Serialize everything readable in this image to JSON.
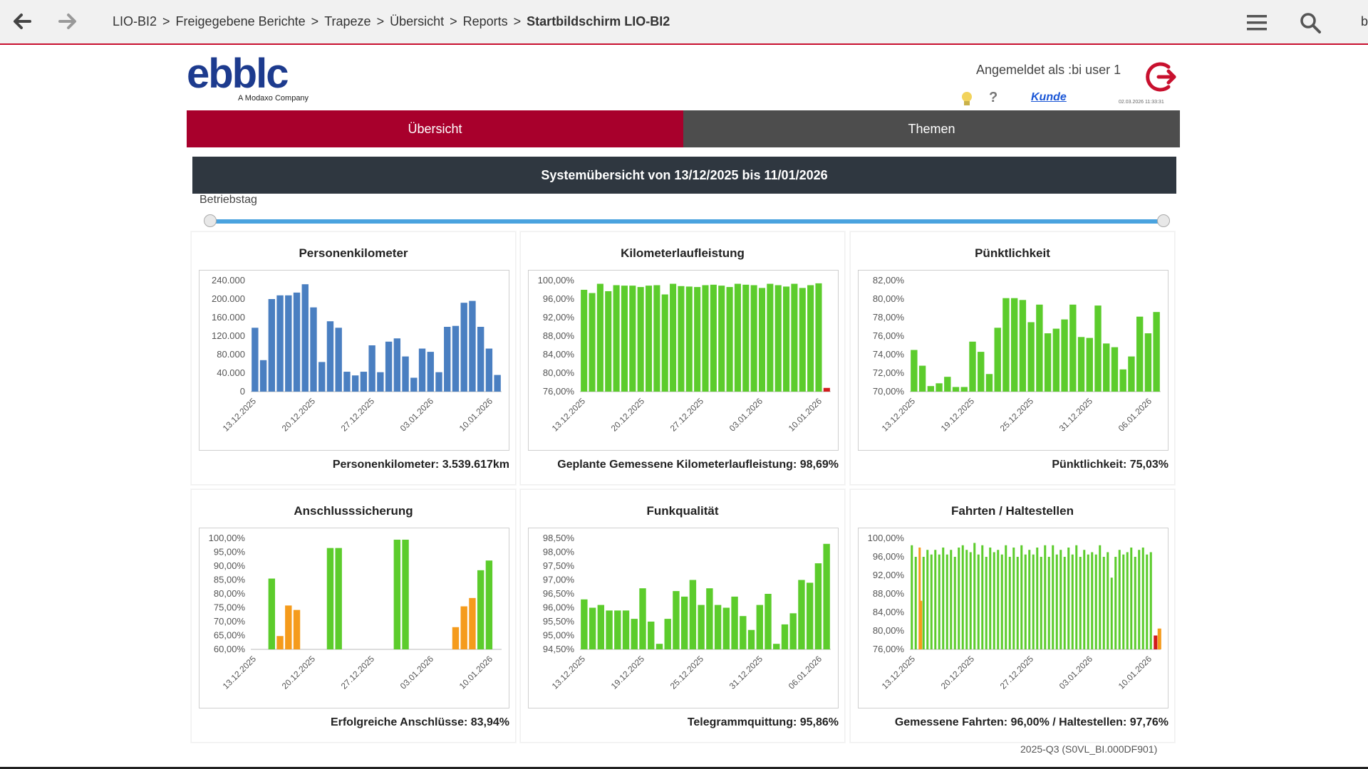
{
  "breadcrumb": [
    "LIO-BI2",
    "Freigegebene Berichte",
    "Trapeze",
    "Übersicht",
    "Reports"
  ],
  "breadcrumb_current": "Startbildschirm LIO-BI2",
  "breadcrumb_separator": ">",
  "topbar_edge_char": "b",
  "logo": {
    "text": "ebblc",
    "sub": "A Modaxo Company"
  },
  "user": {
    "logged_in": "Angemeldet als :bi user 1",
    "kunde": "Kunde",
    "timestamp": "02.03.2026 11:33:31"
  },
  "tabs": {
    "uebersicht": "Übersicht",
    "themen": "Themen"
  },
  "system_header": "Systemübersicht von 13/12/2025 bis 11/01/2026",
  "betriebstag_label": "Betriebstag",
  "footer_code": "2025-Q3 (S0VL_BI.000DF901)",
  "colors": {
    "accent_red": "#a8002c",
    "dark_tab": "#4d4d4d",
    "header_dark": "#2f3740",
    "slider": "#4aa3df",
    "blue": "#4a7fc1",
    "green": "#5ccc2c",
    "orange": "#f59b1c",
    "red": "#d11d1d"
  },
  "icons": {
    "back": "arrow-left-icon",
    "forward": "arrow-right-icon",
    "menu": "hamburger-menu-icon",
    "search": "search-icon",
    "logout": "logout-icon",
    "bulb": "lightbulb-icon",
    "help": "question-icon"
  },
  "panels": [
    {
      "title": "Personenkilometer",
      "summary": "Personenkilometer: 3.539.617km"
    },
    {
      "title": "Kilometerlaufleistung",
      "summary": "Geplante Gemessene Kilometerlaufleistung: 98,69%"
    },
    {
      "title": "Pünktlichkeit",
      "summary": "Pünktlichkeit: 75,03%"
    },
    {
      "title": "Anschlusssicherung",
      "summary": "Erfolgreiche Anschlüsse: 83,94%"
    },
    {
      "title": "Funkqualität",
      "summary": "Telegrammquittung: 95,86%"
    },
    {
      "title": "Fahrten / Haltestellen",
      "summary": "Gemessene Fahrten: 96,00% / Haltestellen: 97,76%"
    }
  ],
  "chart_data": [
    {
      "type": "bar",
      "title": "Personenkilometer",
      "ylim": [
        0,
        240000
      ],
      "yticks": [
        "240.000",
        "200.000",
        "160.000",
        "120.000",
        "80.000",
        "40.000",
        "0"
      ],
      "xticks": [
        "13.12.2025",
        "20.12.2025",
        "27.12.2025",
        "03.01.2026",
        "10.01.2026"
      ],
      "values": [
        138000,
        68000,
        200000,
        208000,
        208000,
        214000,
        232000,
        182000,
        64000,
        152000,
        138000,
        43000,
        35000,
        43000,
        100000,
        42000,
        108000,
        115000,
        76000,
        30000,
        93000,
        86000,
        42000,
        140000,
        142000,
        192000,
        196000,
        140000,
        93000,
        36000
      ],
      "colors": [
        "blue"
      ]
    },
    {
      "type": "bar",
      "title": "Kilometerlaufleistung",
      "ylim": [
        76,
        100
      ],
      "yticks": [
        "100,00%",
        "96,00%",
        "92,00%",
        "88,00%",
        "84,00%",
        "80,00%",
        "76,00%"
      ],
      "xticks": [
        "13.12.2025",
        "20.12.2025",
        "27.12.2025",
        "03.01.2026",
        "10.01.2026"
      ],
      "values": [
        98.0,
        97.3,
        99.3,
        97.7,
        99.0,
        98.9,
        98.9,
        98.6,
        98.9,
        99.0,
        97.0,
        99.3,
        98.8,
        98.7,
        98.6,
        99.0,
        99.1,
        98.9,
        98.6,
        99.3,
        99.1,
        99.0,
        98.4,
        99.3,
        99.0,
        98.7,
        99.3,
        98.4,
        99.0,
        99.4,
        76.8
      ],
      "colors": [
        "green",
        "green",
        "green",
        "green",
        "green",
        "green",
        "green",
        "green",
        "green",
        "green",
        "green",
        "green",
        "green",
        "green",
        "green",
        "green",
        "green",
        "green",
        "green",
        "green",
        "green",
        "green",
        "green",
        "green",
        "green",
        "green",
        "green",
        "green",
        "green",
        "green",
        "red"
      ]
    },
    {
      "type": "bar",
      "title": "Pünktlichkeit",
      "ylim": [
        70,
        82
      ],
      "yticks": [
        "82,00%",
        "80,00%",
        "78,00%",
        "76,00%",
        "74,00%",
        "72,00%",
        "70,00%"
      ],
      "xticks": [
        "13.12.2025",
        "19.12.2025",
        "25.12.2025",
        "31.12.2025",
        "06.01.2026"
      ],
      "values": [
        74.5,
        72.8,
        70.6,
        70.9,
        71.6,
        70.5,
        70.5,
        75.4,
        74.3,
        71.9,
        76.9,
        80.1,
        80.1,
        79.9,
        77.5,
        79.4,
        76.3,
        76.8,
        77.8,
        79.4,
        75.9,
        75.8,
        79.3,
        75.2,
        74.8,
        72.4,
        73.8,
        78.1,
        76.3,
        78.6
      ],
      "colors": [
        "green"
      ]
    },
    {
      "type": "bar",
      "title": "Anschlusssicherung",
      "ylim": [
        60,
        100
      ],
      "yticks": [
        "100,00%",
        "95,00%",
        "90,00%",
        "85,00%",
        "80,00%",
        "75,00%",
        "70,00%",
        "65,00%",
        "60,00%"
      ],
      "xticks": [
        "13.12.2025",
        "20.12.2025",
        "27.12.2025",
        "03.01.2026",
        "10.01.2026"
      ],
      "values": [
        null,
        null,
        85.5,
        64.8,
        75.8,
        74.2,
        null,
        null,
        null,
        96.5,
        96.5,
        null,
        null,
        null,
        null,
        null,
        null,
        99.5,
        99.5,
        null,
        null,
        null,
        null,
        null,
        68.0,
        75.5,
        78.5,
        88.5,
        92.0,
        null
      ],
      "colors": [
        "green",
        "green",
        "green",
        "orange",
        "orange",
        "orange",
        "green",
        "green",
        "green",
        "green",
        "green",
        "green",
        "green",
        "green",
        "green",
        "green",
        "green",
        "green",
        "green",
        "green",
        "green",
        "green",
        "green",
        "green",
        "orange",
        "orange",
        "orange",
        "green",
        "green",
        "green"
      ]
    },
    {
      "type": "bar",
      "title": "Funkqualität",
      "ylim": [
        94.5,
        98.5
      ],
      "yticks": [
        "98,50%",
        "98,00%",
        "97,50%",
        "97,00%",
        "96,50%",
        "96,00%",
        "95,50%",
        "95,00%",
        "94,50%"
      ],
      "xticks": [
        "13.12.2025",
        "19.12.2025",
        "25.12.2025",
        "31.12.2025",
        "06.01.2026"
      ],
      "values": [
        96.3,
        96.0,
        96.1,
        95.9,
        95.9,
        95.9,
        95.6,
        96.7,
        95.5,
        94.7,
        95.6,
        96.6,
        96.4,
        97.0,
        96.1,
        96.7,
        96.1,
        96.0,
        96.4,
        95.7,
        95.2,
        96.1,
        96.5,
        94.7,
        95.4,
        95.8,
        97.0,
        96.9,
        97.6,
        98.3
      ],
      "colors": [
        "green"
      ]
    },
    {
      "type": "bar",
      "title": "Fahrten / Haltestellen",
      "ylim": [
        76,
        100
      ],
      "yticks": [
        "100,00%",
        "96,00%",
        "92,00%",
        "88,00%",
        "84,00%",
        "80,00%",
        "76,00%"
      ],
      "xticks": [
        "13.12.2025",
        "20.12.2025",
        "27.12.2025",
        "03.01.2026",
        "10.01.2026"
      ],
      "series": [
        {
          "color": "green",
          "values": [
            98.5,
            96.0,
            98.0,
            96.0,
            97.5,
            96.5,
            97.5,
            96.5,
            98.0,
            96.5,
            97.5,
            96.0,
            98.0,
            98.5,
            97.5,
            97.0,
            99.0,
            96.5,
            98.5,
            96.0,
            98.0,
            97.0,
            97.5,
            96.5,
            98.5,
            96.0,
            98.0,
            96.0,
            98.5,
            96.5,
            97.5,
            96.5,
            98.0,
            96.0,
            98.5,
            96.0,
            98.5,
            96.5,
            97.5,
            96.0,
            98.0,
            96.5,
            98.5,
            96.0,
            97.5,
            96.5,
            97.0,
            96.5,
            98.5,
            96.0,
            97.0,
            91.5,
            96.0,
            97.5,
            96.5,
            97.0,
            98.0,
            96.0,
            97.5,
            98.0,
            96.5,
            97.0,
            79.0,
            80.5
          ]
        },
        {
          "color": "orange",
          "index": 2,
          "value": 86.5
        },
        {
          "color": "red",
          "index": 62,
          "value": 79.0
        },
        {
          "color": "orange",
          "index": 63,
          "value": 80.5
        }
      ]
    }
  ]
}
